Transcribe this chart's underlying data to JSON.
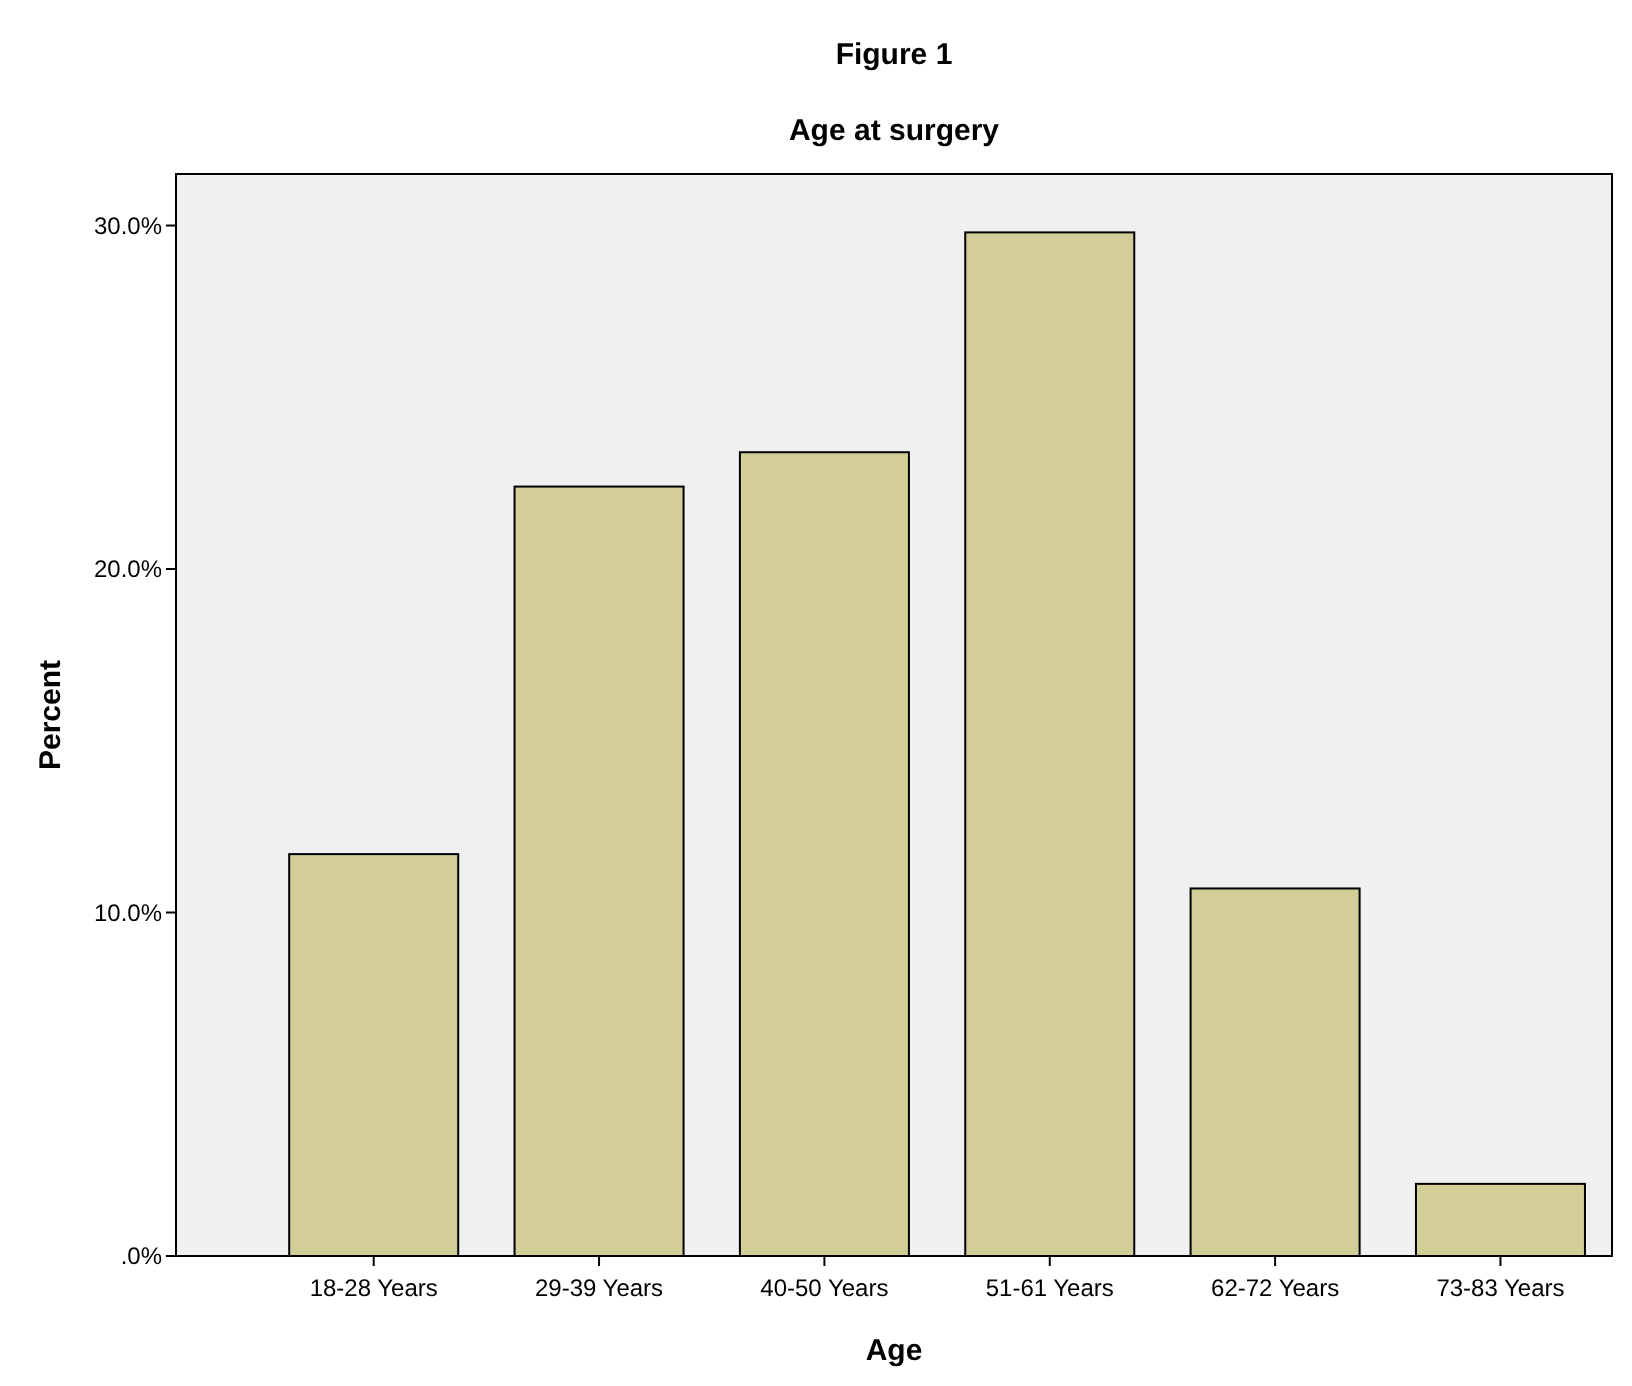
{
  "chart_data": {
    "type": "bar",
    "title": "Figure 1",
    "subtitle": "Age at surgery",
    "xlabel": "Age",
    "ylabel": "Percent",
    "categories": [
      "18-28 Years",
      "29-39 Years",
      "40-50 Years",
      "51-61 Years",
      "62-72 Years",
      "73-83 Years"
    ],
    "values": [
      11.7,
      22.4,
      23.4,
      29.8,
      10.7,
      2.1
    ],
    "color": "#d3ce97",
    "ylim": [
      0,
      31.5
    ],
    "yticks": [
      {
        "value": 0,
        "label": ".0%"
      },
      {
        "value": 10,
        "label": "10.0%"
      },
      {
        "value": 20,
        "label": "20.0%"
      },
      {
        "value": 30,
        "label": "30.0%"
      }
    ],
    "grid": false
  }
}
